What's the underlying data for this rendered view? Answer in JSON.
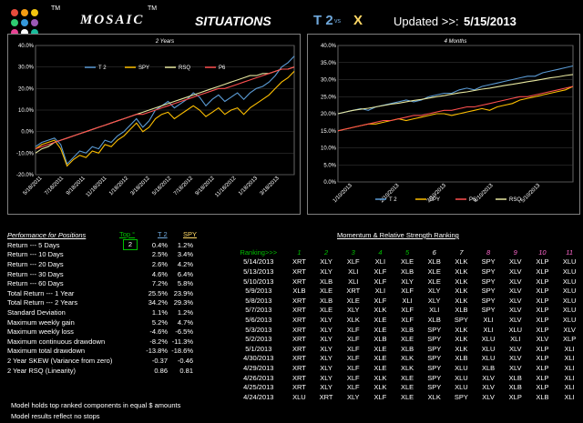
{
  "header": {
    "brand": "MOSAIC",
    "tm1": "TM",
    "tm2": "TM",
    "subtitle": "SITUATIONS",
    "t2": "T 2",
    "vs": "vs",
    "x": "X",
    "updated_label": "Updated >>:",
    "updated_date": "5/15/2013",
    "logo_colors": [
      "#e74c3c",
      "#f39c12",
      "#f1c40f",
      "#2ecc71",
      "#3498db",
      "#9b59b6",
      "#e84393",
      "#ffffff",
      "#1abc9c"
    ]
  },
  "chart_data": [
    {
      "type": "line",
      "title": "2 Years",
      "ylim": [
        -20,
        40
      ],
      "yticks": [
        "40.0%",
        "30.0%",
        "20.0%",
        "10.0%",
        "0.0%",
        "-10.0%",
        "-20.0%"
      ],
      "xticks": [
        "5/18/2011",
        "7/18/2011",
        "9/18/2011",
        "11/18/2011",
        "1/18/2012",
        "3/18/2012",
        "5/18/2012",
        "7/18/2012",
        "9/18/2012",
        "11/18/2012",
        "1/18/2013",
        "3/18/2013"
      ],
      "legend": [
        "T 2",
        "SPY",
        "RSQ",
        "P6"
      ],
      "legend_position": "top",
      "colors": {
        "T 2": "#5b9bd5",
        "SPY": "#ffc000",
        "RSQ": "#e8e8a0",
        "P6": "#ff5050"
      },
      "series": [
        {
          "name": "T 2",
          "values": [
            -7,
            -5,
            -4,
            -3,
            -6,
            -15,
            -12,
            -9,
            -10,
            -7,
            -8,
            -4,
            -5,
            -2,
            0,
            3,
            6,
            2,
            5,
            10,
            12,
            14,
            11,
            13,
            15,
            18,
            16,
            12,
            15,
            17,
            14,
            16,
            18,
            15,
            18,
            20,
            21,
            23,
            26,
            30,
            32,
            35
          ]
        },
        {
          "name": "SPY",
          "values": [
            -8,
            -6,
            -5,
            -4,
            -8,
            -16,
            -13,
            -11,
            -12,
            -9,
            -10,
            -6,
            -7,
            -4,
            -2,
            1,
            4,
            0,
            2,
            6,
            8,
            9,
            6,
            8,
            10,
            12,
            10,
            7,
            9,
            11,
            8,
            10,
            11,
            8,
            11,
            13,
            15,
            17,
            20,
            23,
            25,
            28
          ]
        },
        {
          "name": "RSQ",
          "values": [
            -10,
            -8,
            -7,
            -5,
            -4,
            -3,
            -2,
            -1,
            0,
            1,
            2,
            3,
            4,
            5,
            6,
            7,
            8,
            9,
            10,
            11,
            12,
            13,
            14,
            15,
            16,
            17,
            18,
            19,
            20,
            21,
            22,
            23,
            24,
            25,
            26,
            26,
            27,
            27,
            28,
            29,
            29,
            30
          ]
        },
        {
          "name": "P6",
          "values": [
            -8,
            -7,
            -6,
            -5,
            -4,
            -3,
            -2,
            -1,
            0,
            1,
            2,
            3,
            4,
            5,
            6,
            7,
            8,
            8,
            9,
            10,
            11,
            12,
            13,
            14,
            15,
            16,
            17,
            18,
            19,
            20,
            20,
            21,
            22,
            23,
            24,
            25,
            26,
            27,
            28,
            29,
            29,
            30
          ]
        }
      ]
    },
    {
      "type": "line",
      "title": "4 Months",
      "ylim": [
        0,
        40
      ],
      "yticks": [
        "40.0%",
        "35.0%",
        "30.0%",
        "25.0%",
        "20.0%",
        "15.0%",
        "10.0%",
        "5.0%",
        "0.0%"
      ],
      "xticks": [
        "1/10/2013",
        "2/10/2013",
        "3/10/2013",
        "4/10/2013",
        "5/10/2013"
      ],
      "legend": [
        "T 2",
        "SPY",
        "P6",
        "RSQ"
      ],
      "legend_position": "bottom",
      "colors": {
        "T 2": "#5b9bd5",
        "SPY": "#ffc000",
        "P6": "#ff5050",
        "RSQ": "#e8e8a0"
      },
      "series": [
        {
          "name": "T 2",
          "values": [
            20,
            20.5,
            21,
            21.5,
            21,
            22,
            22.5,
            23,
            23.5,
            24,
            23.5,
            24,
            25,
            25.5,
            26,
            26,
            27,
            27.5,
            27,
            28,
            28.5,
            29,
            29.5,
            30,
            30.5,
            31,
            31,
            32,
            32.5,
            33,
            33.5,
            34
          ]
        },
        {
          "name": "SPY",
          "values": [
            15,
            15.5,
            16,
            16.5,
            17,
            17,
            17.5,
            18,
            18.5,
            18,
            18.5,
            19,
            19.5,
            20,
            20,
            19.5,
            20,
            20.5,
            21,
            21.5,
            21,
            22,
            22.5,
            23,
            24,
            24.5,
            25,
            25.5,
            26,
            26.5,
            27,
            28
          ]
        },
        {
          "name": "P6",
          "values": [
            15,
            15.5,
            16,
            16.5,
            17,
            17.5,
            18,
            18,
            18.5,
            19,
            19.5,
            19.5,
            20,
            20.5,
            21,
            21,
            21.5,
            22,
            22,
            22.5,
            23,
            23.5,
            24,
            24.5,
            25,
            25,
            25.5,
            26,
            26.5,
            27,
            27.5,
            28
          ]
        },
        {
          "name": "RSQ",
          "values": [
            20,
            20.5,
            21,
            21.3,
            21.6,
            22,
            22.4,
            22.8,
            23.1,
            23.5,
            23.9,
            24.2,
            24.6,
            25,
            25.3,
            25.7,
            26.1,
            26.4,
            26.8,
            27.2,
            27.5,
            27.9,
            28.3,
            28.6,
            29,
            29.4,
            29.7,
            30.1,
            30.5,
            30.8,
            31.2,
            31.5
          ]
        }
      ]
    }
  ],
  "perf": {
    "title": "Performance for Positions",
    "top_label": "Top °",
    "top_value": "2",
    "col_t2": "T 2",
    "col_spy": "SPY",
    "rows": [
      {
        "label": "Return --- 5 Days",
        "t2": "0.4%",
        "spy": "1.2%"
      },
      {
        "label": "Return --- 10 Days",
        "t2": "2.5%",
        "spy": "3.4%"
      },
      {
        "label": "Return --- 20 Days",
        "t2": "2.6%",
        "spy": "4.2%"
      },
      {
        "label": "Return --- 30 Days",
        "t2": "4.6%",
        "spy": "6.4%"
      },
      {
        "label": "Return --- 60 Days",
        "t2": "7.2%",
        "spy": "5.8%"
      },
      {
        "label": "Total Return --- 1 Year",
        "t2": "25.5%",
        "spy": "23.9%"
      },
      {
        "label": "Total Return --- 2 Years",
        "t2": "34.2%",
        "spy": "29.3%"
      },
      {
        "label": "Standard Deviation",
        "t2": "1.1%",
        "spy": "1.2%"
      },
      {
        "label": "Maximum weekly gain",
        "t2": "5.2%",
        "spy": "4.7%"
      },
      {
        "label": "Maximum weekly loss",
        "t2": "-4.6%",
        "spy": "-6.5%"
      },
      {
        "label": "Maximum continuous drawdown",
        "t2": "-8.2%",
        "spy": "-11.3%"
      },
      {
        "label": "Maximum total drawdown",
        "t2": "-13.8%",
        "spy": "-18.6%"
      },
      {
        "label": "2 Year SKEW  (Variance from zero)",
        "t2": "-0.37",
        "spy": "-0.46"
      },
      {
        "label": "2 Year RSQ  (Linearity)",
        "t2": "0.86",
        "spy": "0.81"
      }
    ],
    "note1": "Model holds top ranked  components in equal  $ amounts",
    "note2": "Model results reflect no stops"
  },
  "ranking": {
    "title": "Momentum & Relative Strength Ranking",
    "header_label": "Ranking>>>",
    "cols": [
      "1",
      "2",
      "3",
      "4",
      "5",
      "6",
      "7",
      "8",
      "9",
      "10",
      "11"
    ],
    "col_colors": [
      "#00c000",
      "#00c000",
      "#00c000",
      "#00c000",
      "#00c000",
      "#ffffff",
      "#ffffff",
      "#ff66cc",
      "#ff66cc",
      "#ff66cc",
      "#ff66cc"
    ],
    "rows": [
      {
        "date": "5/14/2013",
        "items": [
          "XRT",
          "XLY",
          "XLF",
          "XLI",
          "XLE",
          "XLB",
          "XLK",
          "SPY",
          "XLV",
          "XLP",
          "XLU"
        ]
      },
      {
        "date": "5/13/2013",
        "items": [
          "XRT",
          "XLY",
          "XLI",
          "XLF",
          "XLB",
          "XLE",
          "XLK",
          "SPY",
          "XLV",
          "XLP",
          "XLU"
        ]
      },
      {
        "date": "5/10/2013",
        "items": [
          "XRT",
          "XLB",
          "XLI",
          "XLF",
          "XLY",
          "XLE",
          "XLK",
          "SPY",
          "XLV",
          "XLP",
          "XLU"
        ]
      },
      {
        "date": "5/9/2013",
        "items": [
          "XLB",
          "XLE",
          "XRT",
          "XLI",
          "XLF",
          "XLY",
          "XLK",
          "SPY",
          "XLV",
          "XLP",
          "XLU"
        ]
      },
      {
        "date": "5/8/2013",
        "items": [
          "XRT",
          "XLB",
          "XLE",
          "XLF",
          "XLI",
          "XLY",
          "XLK",
          "SPY",
          "XLV",
          "XLP",
          "XLU"
        ]
      },
      {
        "date": "5/7/2013",
        "items": [
          "XRT",
          "XLE",
          "XLY",
          "XLK",
          "XLF",
          "XLI",
          "XLB",
          "SPY",
          "XLV",
          "XLP",
          "XLU"
        ]
      },
      {
        "date": "5/6/2013",
        "items": [
          "XRT",
          "XLY",
          "XLK",
          "XLE",
          "XLF",
          "XLB",
          "SPY",
          "XLI",
          "XLV",
          "XLP",
          "XLU"
        ]
      },
      {
        "date": "5/3/2013",
        "items": [
          "XRT",
          "XLY",
          "XLF",
          "XLE",
          "XLB",
          "SPY",
          "XLK",
          "XLI",
          "XLU",
          "XLP",
          "XLV"
        ]
      },
      {
        "date": "5/2/2013",
        "items": [
          "XRT",
          "XLY",
          "XLF",
          "XLB",
          "XLE",
          "SPY",
          "XLK",
          "XLU",
          "XLI",
          "XLV",
          "XLP"
        ]
      },
      {
        "date": "5/1/2013",
        "items": [
          "XRT",
          "XLY",
          "XLF",
          "XLE",
          "XLB",
          "SPY",
          "XLK",
          "XLU",
          "XLV",
          "XLP",
          "XLI"
        ]
      },
      {
        "date": "4/30/2013",
        "items": [
          "XRT",
          "XLY",
          "XLF",
          "XLE",
          "XLK",
          "SPY",
          "XLB",
          "XLU",
          "XLV",
          "XLP",
          "XLI"
        ]
      },
      {
        "date": "4/29/2013",
        "items": [
          "XRT",
          "XLY",
          "XLF",
          "XLE",
          "XLK",
          "SPY",
          "XLU",
          "XLB",
          "XLV",
          "XLP",
          "XLI"
        ]
      },
      {
        "date": "4/26/2013",
        "items": [
          "XRT",
          "XLY",
          "XLF",
          "XLK",
          "XLE",
          "SPY",
          "XLU",
          "XLV",
          "XLB",
          "XLP",
          "XLI"
        ]
      },
      {
        "date": "4/25/2013",
        "items": [
          "XRT",
          "XLY",
          "XLF",
          "XLK",
          "XLE",
          "SPY",
          "XLU",
          "XLV",
          "XLB",
          "XLP",
          "XLI"
        ]
      },
      {
        "date": "4/24/2013",
        "items": [
          "XLU",
          "XRT",
          "XLY",
          "XLF",
          "XLE",
          "XLK",
          "SPY",
          "XLV",
          "XLP",
          "XLB",
          "XLI"
        ]
      }
    ]
  }
}
